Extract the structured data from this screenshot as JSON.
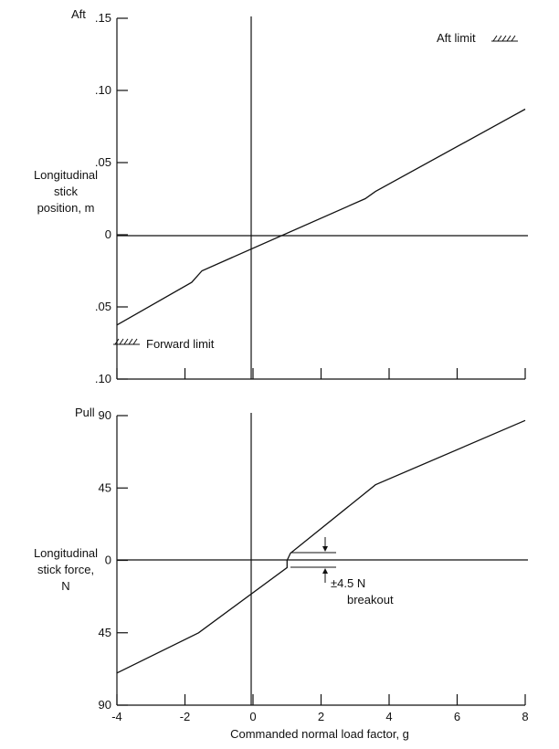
{
  "chart_data": [
    {
      "type": "line",
      "panel": "top",
      "title": "",
      "xlabel": "",
      "ylabel": [
        "Longitudinal",
        "stick",
        "position, m"
      ],
      "corner_label": "Aft",
      "xlim": [
        -4,
        8
      ],
      "ylim": [
        -0.1,
        0.15
      ],
      "y_ticks": [
        0.15,
        0.1,
        0.05,
        0,
        -0.05,
        -0.1
      ],
      "y_tick_labels": [
        ".15",
        ".10",
        ".05",
        "0",
        ".05",
        ".10"
      ],
      "x_ticks": [
        -4,
        -2,
        0,
        2,
        4,
        6,
        8
      ],
      "grid": false,
      "series": [
        {
          "x": [
            -4,
            -1.8,
            -1.5,
            3.3,
            3.6,
            8
          ],
          "y": [
            -0.0625,
            -0.033,
            -0.025,
            0.025,
            0.03,
            0.087
          ]
        }
      ],
      "annotations": [
        {
          "text": "Aft limit",
          "value": 0.135
        },
        {
          "text": "Forward limit",
          "value": -0.075
        }
      ]
    },
    {
      "type": "line",
      "panel": "bottom",
      "title": "",
      "xlabel": "Commanded normal load factor, g",
      "ylabel": [
        "Longitudinal",
        "stick force,",
        "N"
      ],
      "corner_label": "Pull",
      "xlim": [
        -4,
        8
      ],
      "ylim": [
        -90,
        90
      ],
      "y_ticks": [
        90,
        45,
        0,
        -45,
        -90
      ],
      "y_tick_labels": [
        "90",
        "45",
        "0",
        "45",
        "90"
      ],
      "x_ticks": [
        -4,
        -2,
        0,
        2,
        4,
        6,
        8
      ],
      "x_tick_labels": [
        "-4",
        "-2",
        "0",
        "2",
        "4",
        "6",
        "8"
      ],
      "grid": false,
      "series": [
        {
          "x": [
            -4,
            -1.6,
            1.0,
            1.0,
            1.1,
            3.6,
            8
          ],
          "y": [
            -70,
            -45,
            -4.5,
            0,
            4.5,
            47,
            87
          ]
        }
      ],
      "annotations": [
        {
          "text": "±4.5 N",
          "value": 4.5
        },
        {
          "text": "breakout",
          "value": -4.5
        }
      ]
    }
  ]
}
